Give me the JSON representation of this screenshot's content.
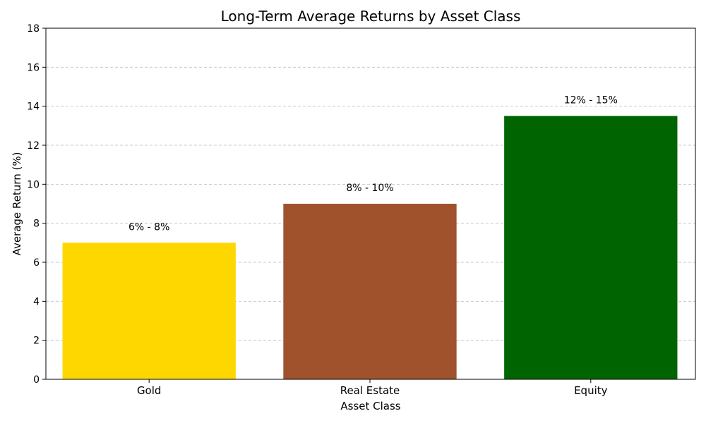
{
  "chart_data": {
    "type": "bar",
    "title": "Long-Term Average Returns by Asset Class",
    "xlabel": "Asset Class",
    "ylabel": "Average Return (%)",
    "categories": [
      "Gold",
      "Real Estate",
      "Equity"
    ],
    "values": [
      7,
      9,
      13.5
    ],
    "data_labels": [
      "6% - 8%",
      "8% - 10%",
      "12% - 15%"
    ],
    "colors": [
      "#FFD700",
      "#A0522D",
      "#006400"
    ],
    "ylim": [
      0,
      18
    ],
    "yticks": [
      0,
      2,
      4,
      6,
      8,
      10,
      12,
      14,
      16,
      18
    ],
    "grid": "y-dashed",
    "legend": "none"
  }
}
